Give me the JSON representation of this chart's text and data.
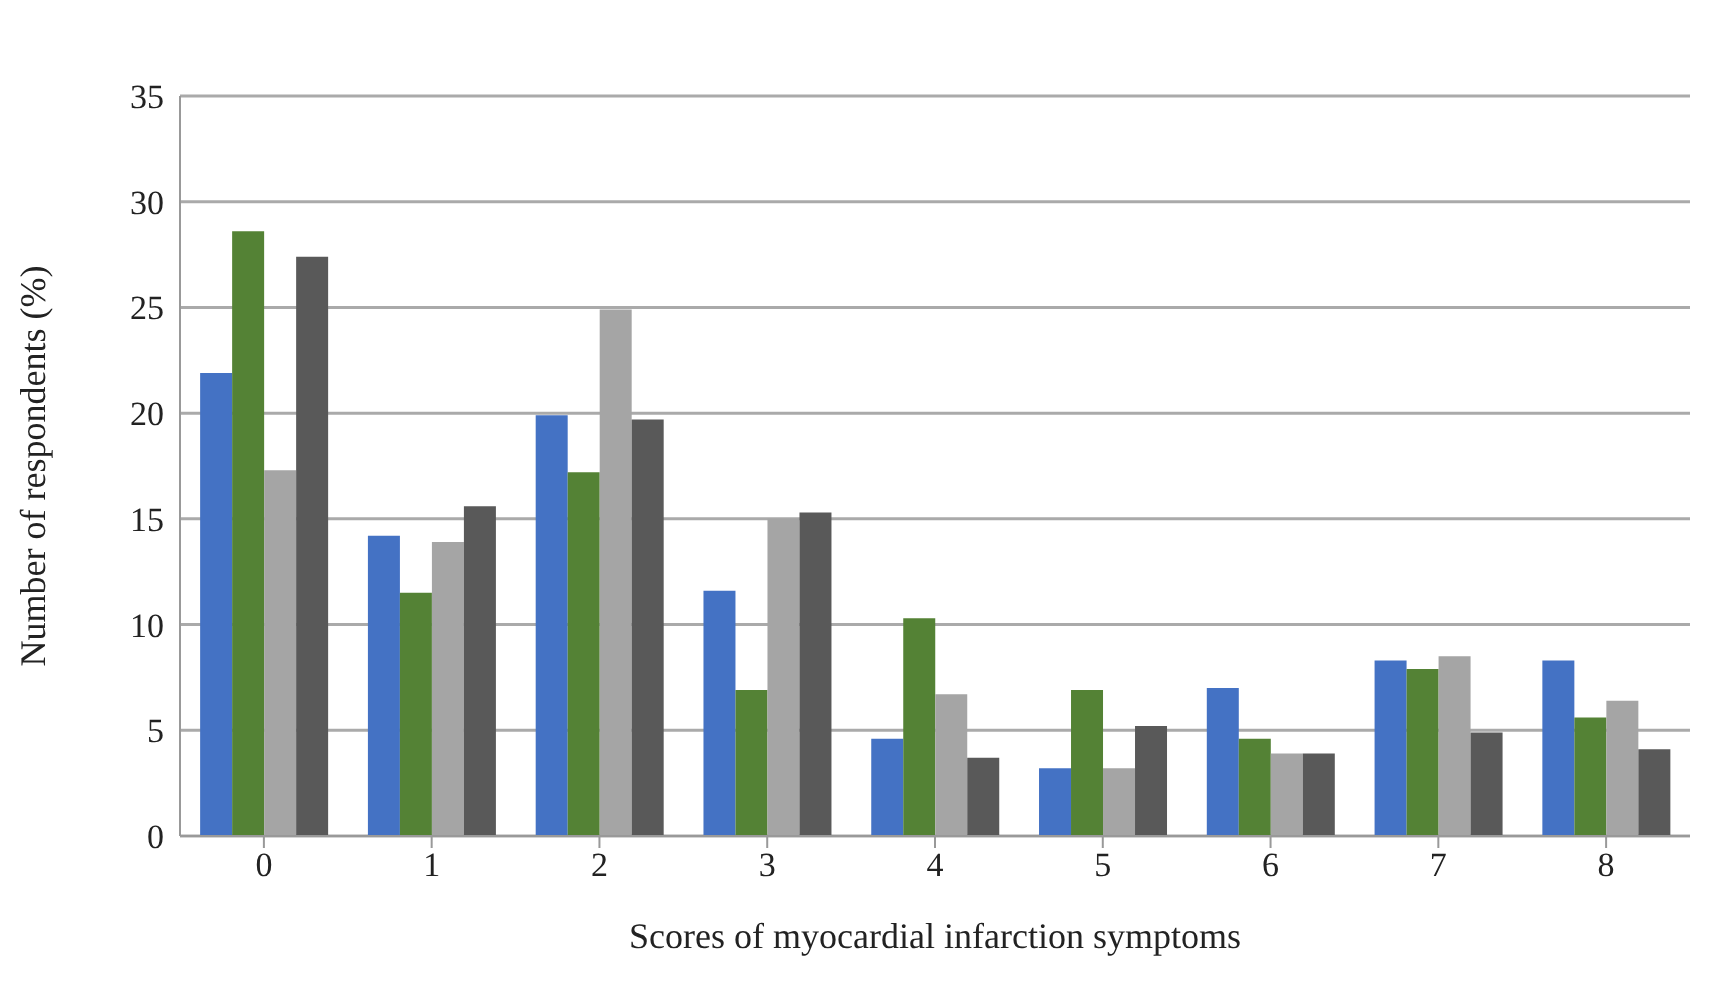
{
  "chart_data": {
    "type": "bar",
    "xlabel": "Scores of myocardial infarction symptoms",
    "ylabel": "Number of respondents (%)",
    "categories": [
      "0",
      "1",
      "2",
      "3",
      "4",
      "5",
      "6",
      "7",
      "8"
    ],
    "series": [
      {
        "color": "#4472c4",
        "values": [
          21.9,
          14.2,
          19.9,
          11.6,
          4.6,
          3.2,
          7.0,
          8.3,
          8.3
        ]
      },
      {
        "color": "#548235",
        "values": [
          28.6,
          11.5,
          17.2,
          6.9,
          10.3,
          6.9,
          4.6,
          7.9,
          5.6
        ]
      },
      {
        "color": "#a5a5a5",
        "values": [
          17.3,
          13.9,
          24.9,
          15.0,
          6.7,
          3.2,
          3.9,
          8.5,
          6.4
        ]
      },
      {
        "color": "#595959",
        "values": [
          27.4,
          15.6,
          19.7,
          15.3,
          3.7,
          5.2,
          3.9,
          4.9,
          4.1
        ]
      }
    ],
    "ylim": [
      0,
      35
    ],
    "yticks": [
      0,
      5,
      10,
      15,
      20,
      25,
      30,
      35
    ],
    "grid": "y",
    "legend": false
  }
}
